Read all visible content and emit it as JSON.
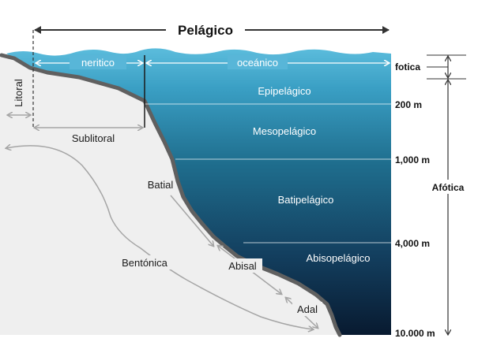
{
  "title": "Pelágico",
  "zones": {
    "neritico": "neritico",
    "oceanico": "oceánico"
  },
  "layers": {
    "epipelagico": "Epipelágico",
    "mesopelagico": "Mesopelágico",
    "batipelagico": "Batipelágico",
    "abisopelagico": "Abisopelágico"
  },
  "depths": {
    "d200": "200 m",
    "d1000": "1,000 m",
    "d4000": "4,000 m",
    "d10000": "10.000 m"
  },
  "light": {
    "fotica": "fotica",
    "afotica": "Afótica"
  },
  "benthic": {
    "litoral": "Litoral",
    "sublitoral": "Sublitoral",
    "batial": "Batial",
    "bentonica": "Bentónica",
    "abisal": "Abisal",
    "adal": "Adal"
  },
  "colors": {
    "surface": "#4fb3d6",
    "mid": "#1a6f8f",
    "deep": "#0a2038",
    "seafloor": "#606060",
    "land": "#efefef",
    "arrow": "#a5a5a5"
  }
}
